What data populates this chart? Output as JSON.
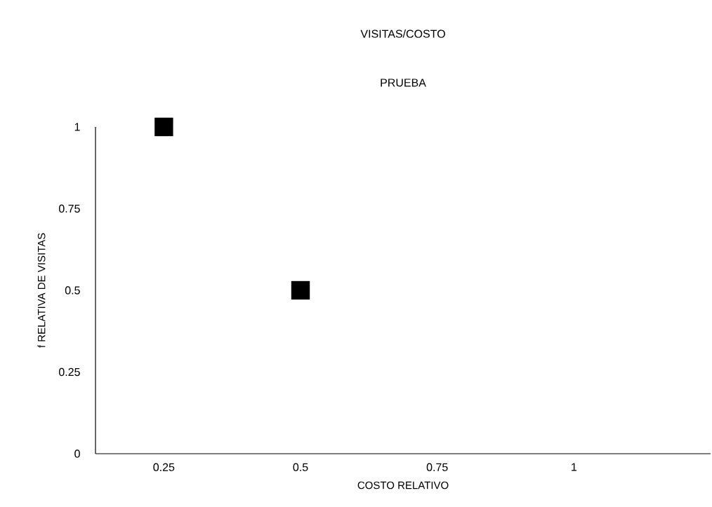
{
  "chart_data": {
    "type": "scatter",
    "title": "VISITAS/COSTO",
    "subtitle": "PRUEBA",
    "xlabel": "COSTO RELATIVO",
    "ylabel": "f RELATIVA DE VISITAS",
    "x": [
      0.25,
      0.5
    ],
    "values": [
      1,
      0.5
    ],
    "color": "#000000",
    "marker": "square",
    "xlim": [
      0.125,
      1.25
    ],
    "xticks": [
      0.25,
      0.5,
      0.75,
      1
    ],
    "ylim": [
      0,
      1
    ],
    "yticks": [
      0,
      0.25,
      0.5,
      0.75,
      1
    ],
    "grid": false
  }
}
